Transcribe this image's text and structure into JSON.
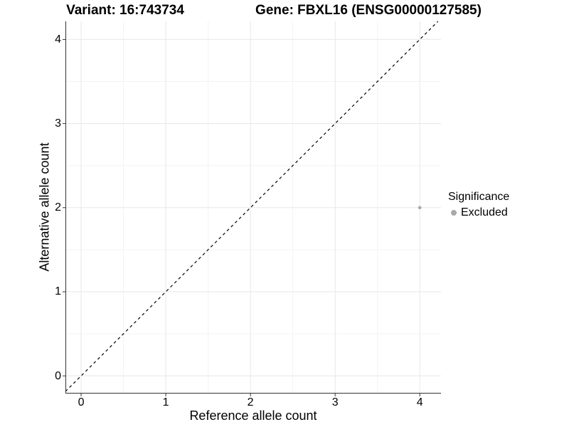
{
  "chart_data": {
    "type": "scatter",
    "titles": [
      "Variant: 16:743734",
      "Gene: FBXL16 (ENSG00000127585)"
    ],
    "xlabel": "Reference allele count",
    "ylabel": "Alternative allele count",
    "x_ticks": [
      0,
      1,
      2,
      3,
      4
    ],
    "y_ticks": [
      0,
      1,
      2,
      3,
      4
    ],
    "x_minor": [
      0.5,
      1.5,
      2.5,
      3.5
    ],
    "y_minor": [
      0.5,
      1.5,
      2.5,
      3.5
    ],
    "xlim": [
      -0.185,
      4.25
    ],
    "ylim": [
      -0.21,
      4.215
    ],
    "grid": true,
    "series": [
      {
        "name": "Excluded",
        "color": "#a9a9a9",
        "points": [
          {
            "x": 4,
            "y": 2
          }
        ]
      }
    ],
    "reference_line": {
      "slope": 1,
      "intercept": 0,
      "style": "dashed",
      "color": "#000000"
    },
    "legend": {
      "title": "Significance",
      "position": "right",
      "items": [
        {
          "label": "Excluded",
          "color": "#a9a9a9"
        }
      ]
    },
    "colors": {
      "major_grid": "#e7e7e7",
      "minor_grid": "#f3f3f3",
      "axis": "#333333",
      "tick": "#333333"
    }
  }
}
